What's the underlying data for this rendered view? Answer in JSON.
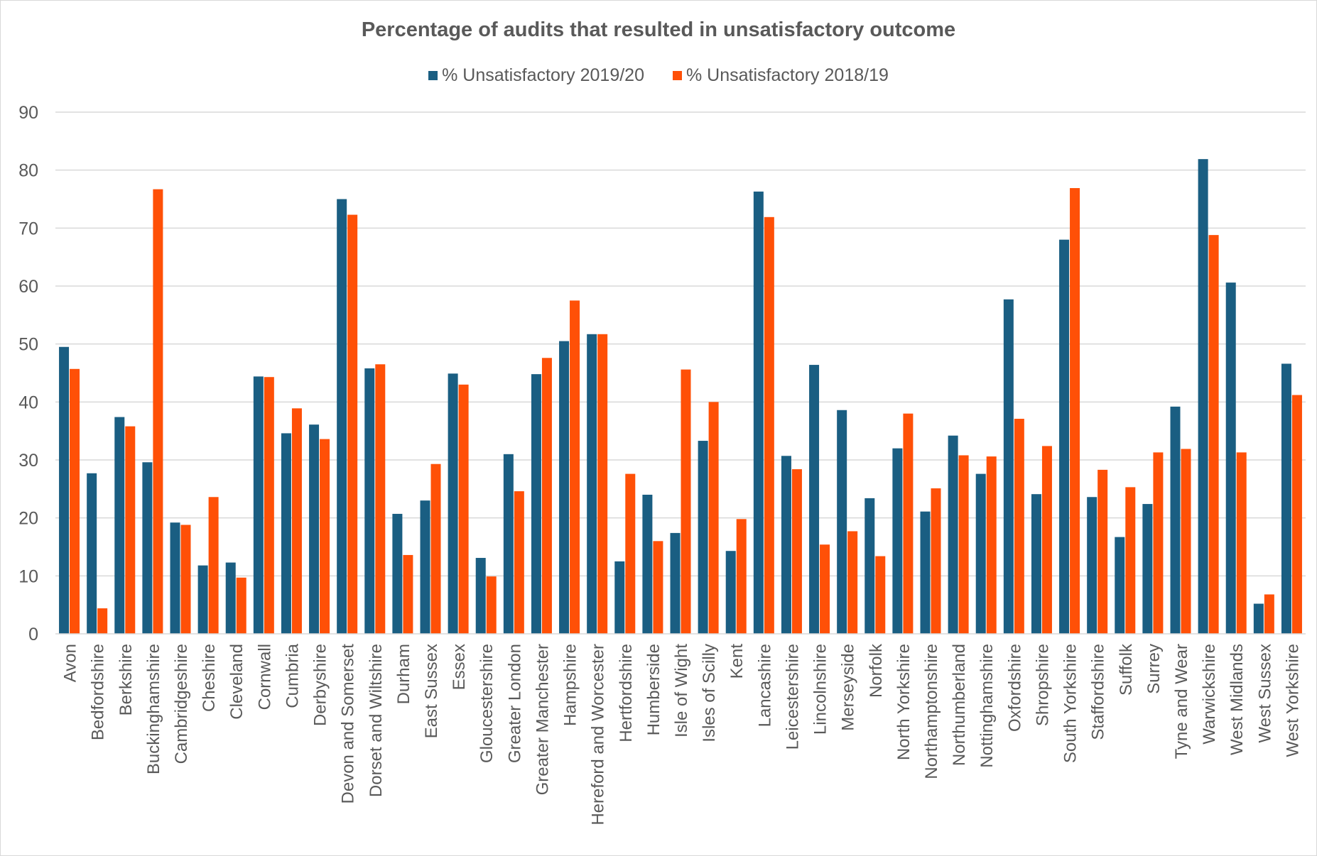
{
  "chart_data": {
    "type": "bar",
    "title": "Percentage of audits that resulted in unsatisfactory outcome",
    "xlabel": "",
    "ylabel": "",
    "ylim": [
      0,
      90
    ],
    "yticks": [
      0,
      10,
      20,
      30,
      40,
      50,
      60,
      70,
      80,
      90
    ],
    "grid": true,
    "legend_position": "top",
    "categories": [
      "Avon",
      "Bedfordshire",
      "Berkshire",
      "Buckinghamshire",
      "Cambridgeshire",
      "Cheshire",
      "Cleveland",
      "Cornwall",
      "Cumbria",
      "Derbyshire",
      "Devon and Somerset",
      "Dorset and Wiltshire",
      "Durham",
      "East Sussex",
      "Essex",
      "Gloucestershire",
      "Greater London",
      "Greater Manchester",
      "Hampshire",
      "Hereford and Worcester",
      "Hertfordshire",
      "Humberside",
      "Isle of Wight",
      "Isles of Scilly",
      "Kent",
      "Lancashire",
      "Leicestershire",
      "Lincolnshire",
      "Merseyside",
      "Norfolk",
      "North Yorkshire",
      "Northamptonshire",
      "Northumberland",
      "Nottinghamshire",
      "Oxfordshire",
      "Shropshire",
      "South Yorkshire",
      "Staffordshire",
      "Suffolk",
      "Surrey",
      "Tyne and Wear",
      "Warwickshire",
      "West Midlands",
      "West Sussex",
      "West Yorkshire"
    ],
    "series": [
      {
        "name": "% Unsatisfactory 2019/20",
        "color": "#1a5e82",
        "values": [
          49.5,
          27.7,
          37.4,
          29.6,
          19.2,
          11.8,
          12.3,
          44.4,
          34.6,
          36.1,
          75.0,
          45.8,
          20.7,
          23.0,
          44.9,
          13.1,
          31.0,
          44.8,
          50.5,
          51.7,
          12.5,
          24.0,
          17.4,
          33.3,
          14.3,
          76.3,
          30.7,
          46.4,
          38.6,
          23.4,
          32.0,
          21.1,
          34.2,
          27.6,
          57.7,
          24.1,
          68.0,
          23.6,
          16.7,
          22.4,
          39.2,
          81.9,
          60.6,
          5.2,
          46.6
        ]
      },
      {
        "name": "% Unsatisfactory 2018/19",
        "color": "#ff5007",
        "values": [
          45.7,
          4.4,
          35.8,
          76.7,
          18.8,
          23.6,
          9.7,
          44.3,
          38.9,
          33.6,
          72.3,
          46.5,
          13.6,
          29.3,
          43.0,
          9.9,
          24.6,
          47.6,
          57.5,
          51.7,
          27.6,
          16.0,
          45.6,
          40.0,
          19.8,
          71.9,
          28.4,
          15.4,
          17.7,
          13.4,
          38.0,
          25.1,
          30.8,
          30.6,
          37.1,
          32.4,
          76.9,
          28.3,
          25.3,
          31.3,
          31.9,
          68.8,
          31.3,
          6.8,
          41.2
        ]
      }
    ]
  }
}
